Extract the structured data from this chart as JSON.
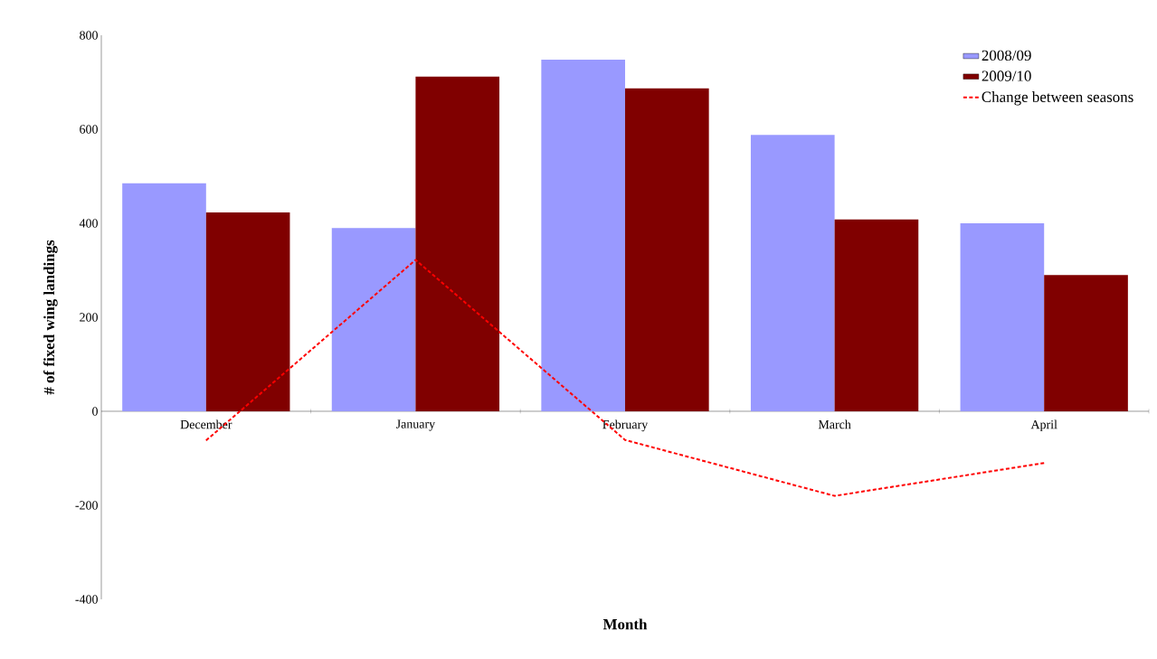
{
  "chart_data": {
    "type": "bar",
    "xlabel": "Month",
    "ylabel": "# of fixed wing landings",
    "categories": [
      "December",
      "January",
      "February",
      "March",
      "April"
    ],
    "series": [
      {
        "name": "2008/09",
        "color": "#9999ff",
        "values": [
          485,
          390,
          748,
          588,
          400
        ]
      },
      {
        "name": "2009/10",
        "color": "#800000",
        "values": [
          423,
          712,
          687,
          408,
          290
        ]
      },
      {
        "name": "Change between seasons",
        "type": "line",
        "line_style": "dashed",
        "color": "#ff0000",
        "values": [
          -62,
          322,
          -61,
          -180,
          -110
        ]
      }
    ],
    "ylim": [
      -400,
      800
    ],
    "yticks": [
      -400,
      -200,
      0,
      200,
      400,
      600,
      800
    ],
    "legend": "top right"
  }
}
